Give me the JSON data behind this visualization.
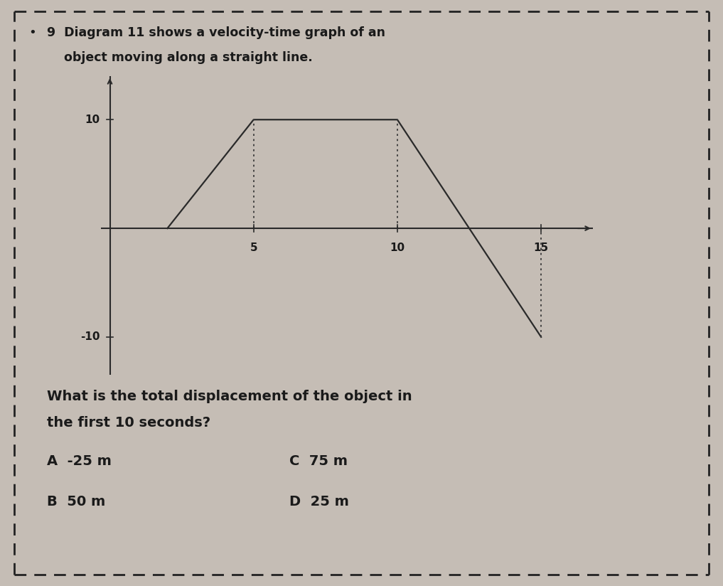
{
  "background_color": "#c5bdb5",
  "border_color": "#222222",
  "graph_line_x": [
    2,
    5,
    10,
    15
  ],
  "graph_line_y": [
    0,
    10,
    10,
    -10
  ],
  "dotted_lines": [
    {
      "x": 5,
      "y0": 0,
      "y1": 10
    },
    {
      "x": 10,
      "y0": 0,
      "y1": 10
    },
    {
      "x": 15,
      "y0": -10,
      "y1": 0
    }
  ],
  "x_ticks": [
    5,
    10,
    15
  ],
  "y_tick_pos": [
    10,
    -10
  ],
  "y_tick_labels": [
    "10",
    "-10"
  ],
  "xlim": [
    -0.3,
    16.8
  ],
  "ylim": [
    -13.5,
    14
  ],
  "title_line1": "9  Diagram 11 shows a velocity-time graph of an",
  "title_line2": "    object moving along a straight line.",
  "question_line1": "What is the total displacement of the object in",
  "question_line2": "the first 10 seconds?",
  "answer_A": "A  -25 m",
  "answer_B": "B  50 m",
  "answer_C": "C  75 m",
  "answer_D": "D  25 m",
  "graph_color": "#2a2a2a",
  "dotted_color": "#3a3a3a",
  "text_color": "#1a1a1a"
}
